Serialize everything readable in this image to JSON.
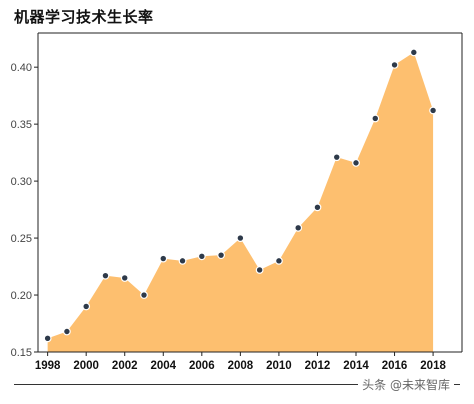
{
  "chart_data": {
    "type": "area",
    "title": "机器学习技术生长率",
    "xlabel": "",
    "ylabel": "",
    "x": [
      1998,
      1999,
      2000,
      2001,
      2002,
      2003,
      2004,
      2005,
      2006,
      2007,
      2008,
      2009,
      2010,
      2011,
      2012,
      2013,
      2014,
      2015,
      2016,
      2017,
      2018
    ],
    "values": [
      0.162,
      0.168,
      0.19,
      0.217,
      0.215,
      0.2,
      0.232,
      0.23,
      0.234,
      0.235,
      0.25,
      0.222,
      0.23,
      0.259,
      0.277,
      0.321,
      0.316,
      0.355,
      0.402,
      0.413,
      0.362
    ],
    "ylim": [
      0.15,
      0.43
    ],
    "xlim": [
      1997.5,
      2019.5
    ],
    "x_ticks": [
      1998,
      2000,
      2002,
      2004,
      2006,
      2008,
      2010,
      2012,
      2014,
      2016,
      2018
    ],
    "x_tick_labels": [
      "1998",
      "2000",
      "2002",
      "2004",
      "2006",
      "2008",
      "2010",
      "2012",
      "2014",
      "2016",
      "2018"
    ],
    "y_ticks": [
      0.15,
      0.2,
      0.25,
      0.3,
      0.35,
      0.4
    ],
    "y_tick_labels": [
      "0.15",
      "0.20",
      "0.25",
      "0.30",
      "0.35",
      "0.40"
    ],
    "grid": false,
    "legend": "none",
    "colors": {
      "fill": "#FDBF6F",
      "marker": "#2E3A4A",
      "marker_stroke": "#ffffff",
      "axis": "#222222"
    }
  },
  "watermark": "头条 @未来智库"
}
